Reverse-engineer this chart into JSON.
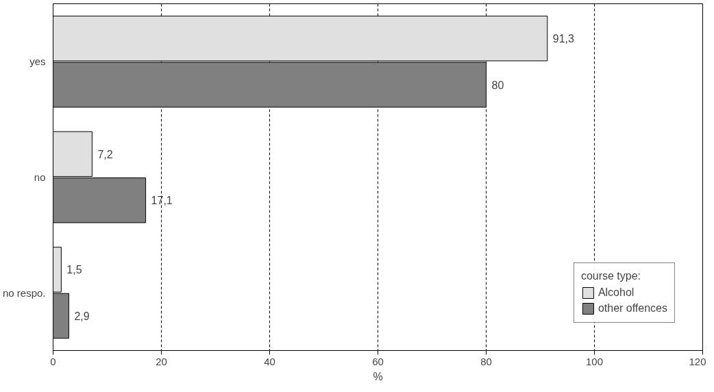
{
  "chart_data": {
    "type": "bar",
    "orientation": "horizontal",
    "xlabel": "%",
    "legend_title": "course type:",
    "categories": [
      "yes",
      "no",
      "no respo."
    ],
    "series": [
      {
        "name": "Alcohol",
        "color": "#e0e0e0",
        "values": [
          91.3,
          7.2,
          1.5
        ],
        "value_labels": [
          "91,3",
          "7,2",
          "1,5"
        ]
      },
      {
        "name": "other offences",
        "color": "#808080",
        "values": [
          80,
          17.1,
          2.9
        ],
        "value_labels": [
          "80",
          "17,1",
          "2,9"
        ]
      }
    ],
    "xlim": [
      0,
      120
    ],
    "xticks": [
      0,
      20,
      40,
      60,
      80,
      100,
      120
    ],
    "grid": "x",
    "legend": "bottom right"
  }
}
